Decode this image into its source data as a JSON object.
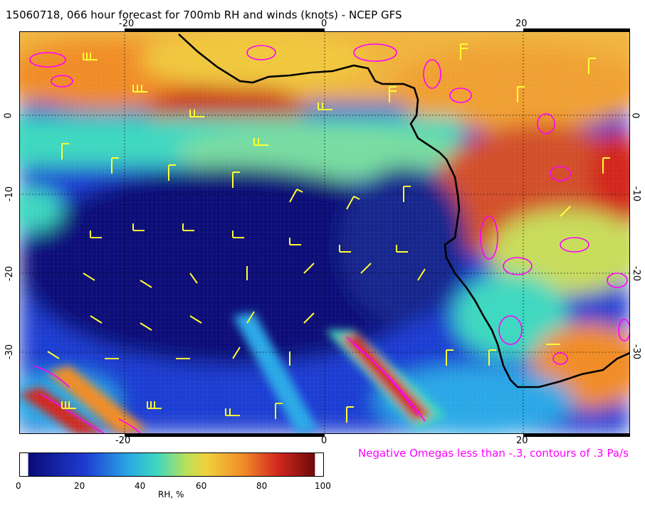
{
  "title": "15060718, 066 hour forecast for 700mb RH and winds (knots) - NCEP GFS",
  "axes": {
    "top_ticks": [
      "-20",
      "0",
      "20"
    ],
    "bottom_ticks": [
      "-20",
      "0",
      "20"
    ],
    "left_ticks": [
      "0",
      "-10",
      "-20",
      "-30"
    ],
    "right_ticks": [
      "0",
      "-10",
      "-20",
      "-30"
    ]
  },
  "omega_note": "Negative Omegas less than -.3, contours of .3 Pa/s",
  "colorbar": {
    "title": "RH, %",
    "labels": [
      "0",
      "20",
      "40",
      "60",
      "80",
      "100"
    ],
    "colors": [
      "#0a0a78",
      "#1e3cd2",
      "#2aa8e6",
      "#3ed8c0",
      "#b8e05a",
      "#f0d23c",
      "#f08c28",
      "#d2281e",
      "#6e0a0a"
    ]
  },
  "map": {
    "coastline_color": "#000000",
    "barb_color": "#ffff33",
    "omega_contour_color": "#ff00ff"
  }
}
